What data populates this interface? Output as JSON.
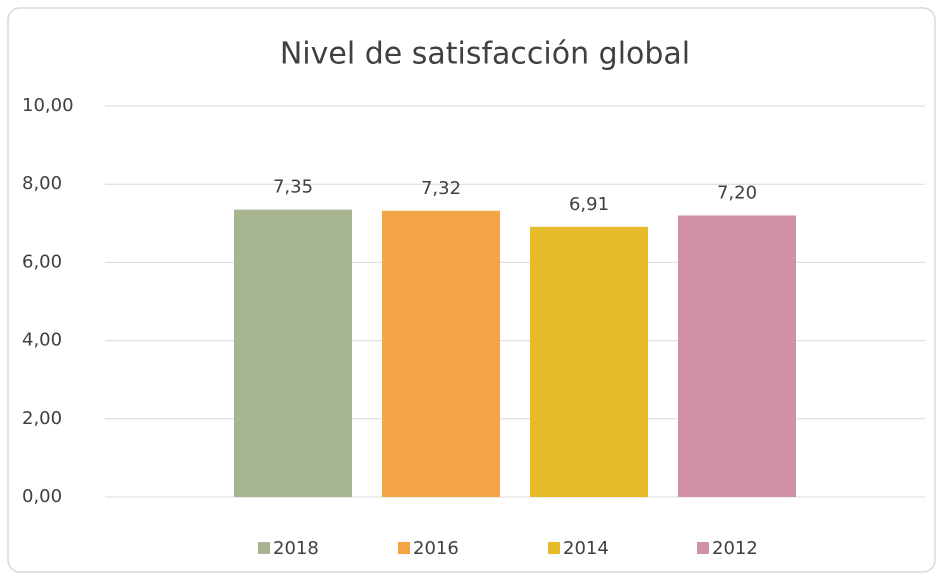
{
  "chart_data": {
    "type": "bar",
    "title": "Nivel de satisfacción global",
    "categories": [
      null
    ],
    "series": [
      {
        "name": "2018",
        "color": "#a7b490",
        "values": [
          7.35
        ],
        "value_labels": [
          "7,35"
        ]
      },
      {
        "name": "2016",
        "color": "#f3a546",
        "values": [
          7.32
        ],
        "value_labels": [
          "7,32"
        ]
      },
      {
        "name": "2014",
        "color": "#e6bb2b",
        "values": [
          6.91
        ],
        "value_labels": [
          "6,91"
        ]
      },
      {
        "name": "2012",
        "color": "#d090a6",
        "values": [
          7.2
        ],
        "value_labels": [
          "7,20"
        ]
      }
    ],
    "ylim": [
      0,
      10
    ],
    "yticks": [
      {
        "value": 0,
        "label": "0,00"
      },
      {
        "value": 2,
        "label": "2,00"
      },
      {
        "value": 4,
        "label": "4,00"
      },
      {
        "value": 6,
        "label": "6,00"
      },
      {
        "value": 8,
        "label": "8,00"
      },
      {
        "value": 10,
        "label": "10,00"
      }
    ],
    "grid": true,
    "legend": "bottom"
  }
}
